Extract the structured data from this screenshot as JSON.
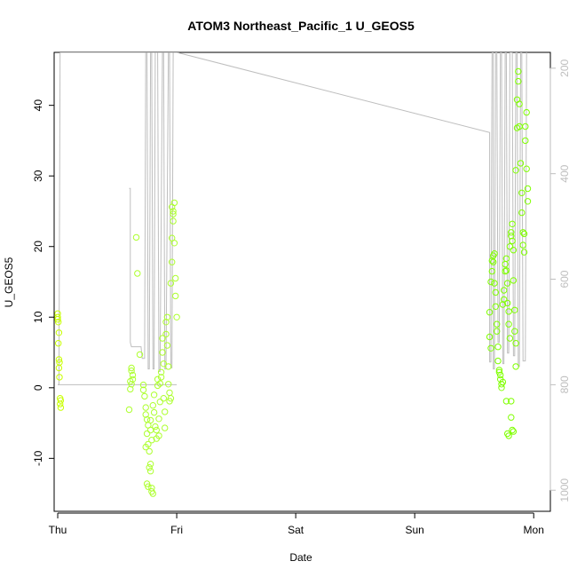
{
  "chart_data": {
    "type": "scatter",
    "title": "ATOM3 Northeast_Pacific_1 U_GEOS5",
    "xlabel": "Date",
    "ylabel": "U_GEOS5",
    "x_tick_labels": [
      "Thu",
      "Fri",
      "Sat",
      "Sun",
      "Mon"
    ],
    "xlim_days": [
      -0.03,
      4.14
    ],
    "ylim": [
      -17.5,
      47.5
    ],
    "y_ticks": [
      -10,
      0,
      10,
      20,
      30,
      40
    ],
    "right_axis": {
      "label": "",
      "lim": [
        1040,
        170
      ],
      "ticks": [
        200,
        400,
        600,
        800,
        1000
      ],
      "color": "#bebebe"
    },
    "grid": false,
    "legend": "none",
    "marker_colors": [
      "#7fff00",
      "#adff2f",
      "#c8ff00"
    ],
    "line_color": "#bebebe",
    "series": [
      {
        "points": [
          [
            0.0,
            10.5
          ],
          [
            0.0,
            10.0
          ],
          [
            0.0,
            9.7
          ],
          [
            0.005,
            9.3
          ],
          [
            0.01,
            7.8
          ],
          [
            0.005,
            6.3
          ],
          [
            0.01,
            4.0
          ],
          [
            0.015,
            3.6
          ],
          [
            0.01,
            2.8
          ],
          [
            0.015,
            1.5
          ],
          [
            0.02,
            -1.5
          ],
          [
            0.025,
            -1.8
          ],
          [
            0.02,
            -2.3
          ],
          [
            0.025,
            -2.8
          ],
          [
            0.62,
            2.8
          ],
          [
            0.62,
            2.4
          ],
          [
            0.63,
            1.8
          ],
          [
            0.63,
            1.2
          ],
          [
            0.61,
            0.9
          ],
          [
            0.62,
            0.5
          ],
          [
            0.61,
            -0.2
          ],
          [
            0.6,
            -3.1
          ],
          [
            0.66,
            21.3
          ],
          [
            0.67,
            16.2
          ],
          [
            0.69,
            4.7
          ],
          [
            0.72,
            0.4
          ],
          [
            0.72,
            -0.3
          ],
          [
            0.73,
            -1.2
          ],
          [
            0.74,
            -2.8
          ],
          [
            0.74,
            -3.8
          ],
          [
            0.75,
            -4.5
          ],
          [
            0.75,
            -6.5
          ],
          [
            0.76,
            -5.3
          ],
          [
            0.76,
            -8.0
          ],
          [
            0.77,
            -9.0
          ],
          [
            0.78,
            -4.6
          ],
          [
            0.78,
            -6.0
          ],
          [
            0.79,
            -7.4
          ],
          [
            0.74,
            -8.4
          ],
          [
            0.75,
            -13.6
          ],
          [
            0.76,
            -14.0
          ],
          [
            0.77,
            -11.3
          ],
          [
            0.78,
            -11.8
          ],
          [
            0.78,
            -10.8
          ],
          [
            0.79,
            -14.2
          ],
          [
            0.79,
            -14.7
          ],
          [
            0.8,
            -15.0
          ],
          [
            0.8,
            -2.5
          ],
          [
            0.81,
            -1.0
          ],
          [
            0.81,
            -3.5
          ],
          [
            0.82,
            -5.5
          ],
          [
            0.83,
            -6.0
          ],
          [
            0.83,
            -7.2
          ],
          [
            0.84,
            0.3
          ],
          [
            0.84,
            1.2
          ],
          [
            0.85,
            -4.4
          ],
          [
            0.85,
            -6.8
          ],
          [
            0.86,
            -2.0
          ],
          [
            0.86,
            0.6
          ],
          [
            0.87,
            1.5
          ],
          [
            0.87,
            2.2
          ],
          [
            0.88,
            5.0
          ],
          [
            0.88,
            7.0
          ],
          [
            0.89,
            3.4
          ],
          [
            0.89,
            -1.5
          ],
          [
            0.9,
            -3.4
          ],
          [
            0.9,
            -5.7
          ],
          [
            0.91,
            7.6
          ],
          [
            0.91,
            9.3
          ],
          [
            0.92,
            10.0
          ],
          [
            0.92,
            6.0
          ],
          [
            0.93,
            3.0
          ],
          [
            0.93,
            0.5
          ],
          [
            0.94,
            -0.7
          ],
          [
            0.94,
            -1.9
          ],
          [
            0.95,
            -1.5
          ],
          [
            0.95,
            14.8
          ],
          [
            0.96,
            17.8
          ],
          [
            0.96,
            21.2
          ],
          [
            0.97,
            23.6
          ],
          [
            0.97,
            25.0
          ],
          [
            0.98,
            26.2
          ],
          [
            0.98,
            20.5
          ],
          [
            0.99,
            15.5
          ],
          [
            0.99,
            13.0
          ],
          [
            1.0,
            10.0
          ],
          [
            0.96,
            25.6
          ],
          [
            0.97,
            24.6
          ],
          [
            3.63,
            10.7
          ],
          [
            3.63,
            7.2
          ],
          [
            3.64,
            5.6
          ],
          [
            3.64,
            15.0
          ],
          [
            3.65,
            16.5
          ],
          [
            3.65,
            18.0
          ],
          [
            3.66,
            18.7
          ],
          [
            3.66,
            17.8
          ],
          [
            3.67,
            19.0
          ],
          [
            3.67,
            14.8
          ],
          [
            3.68,
            11.5
          ],
          [
            3.68,
            13.5
          ],
          [
            3.69,
            9.0
          ],
          [
            3.69,
            8.0
          ],
          [
            3.7,
            5.8
          ],
          [
            3.7,
            3.8
          ],
          [
            3.71,
            2.5
          ],
          [
            3.71,
            2.2
          ],
          [
            3.72,
            1.8
          ],
          [
            3.72,
            1.2
          ],
          [
            3.73,
            0.5
          ],
          [
            3.73,
            0.0
          ],
          [
            3.74,
            0.8
          ],
          [
            3.74,
            11.8
          ],
          [
            3.75,
            12.5
          ],
          [
            3.75,
            13.8
          ],
          [
            3.76,
            16.5
          ],
          [
            3.76,
            17.5
          ],
          [
            3.77,
            18.3
          ],
          [
            3.77,
            16.6
          ],
          [
            3.78,
            14.8
          ],
          [
            3.78,
            12.0
          ],
          [
            3.79,
            10.8
          ],
          [
            3.79,
            9.0
          ],
          [
            3.8,
            7.0
          ],
          [
            3.8,
            20.0
          ],
          [
            3.81,
            21.5
          ],
          [
            3.81,
            22.0
          ],
          [
            3.82,
            20.8
          ],
          [
            3.82,
            23.2
          ],
          [
            3.83,
            19.5
          ],
          [
            3.83,
            15.2
          ],
          [
            3.84,
            11.0
          ],
          [
            3.84,
            8.0
          ],
          [
            3.85,
            6.3
          ],
          [
            3.85,
            3.0
          ],
          [
            3.77,
            -1.9
          ],
          [
            3.78,
            -6.5
          ],
          [
            3.79,
            -6.8
          ],
          [
            3.81,
            -4.2
          ],
          [
            3.82,
            -6.0
          ],
          [
            3.83,
            -6.2
          ],
          [
            3.81,
            -1.9
          ],
          [
            3.85,
            30.8
          ],
          [
            3.86,
            36.8
          ],
          [
            3.86,
            40.8
          ],
          [
            3.87,
            44.8
          ],
          [
            3.87,
            43.4
          ],
          [
            3.88,
            37.0
          ],
          [
            3.89,
            31.8
          ],
          [
            3.9,
            27.6
          ],
          [
            3.9,
            24.8
          ],
          [
            3.91,
            22.0
          ],
          [
            3.91,
            20.2
          ],
          [
            3.92,
            19.2
          ],
          [
            3.92,
            21.8
          ],
          [
            3.93,
            35.0
          ],
          [
            3.93,
            37.0
          ],
          [
            3.94,
            39.0
          ],
          [
            3.94,
            31.0
          ],
          [
            3.95,
            28.2
          ],
          [
            3.95,
            26.4
          ],
          [
            3.88,
            40.2
          ]
        ]
      }
    ],
    "right_axis_line": [
      [
        0.0,
        800
      ],
      [
        0.01,
        800
      ],
      [
        0.02,
        170
      ],
      [
        0.55,
        170
      ],
      [
        1.0,
        170
      ],
      [
        3.63,
        322
      ],
      [
        3.63,
        757
      ],
      [
        3.64,
        757
      ],
      [
        3.65,
        170
      ],
      [
        3.66,
        170
      ],
      [
        3.66,
        770
      ],
      [
        3.67,
        770
      ],
      [
        3.68,
        170
      ],
      [
        3.69,
        170
      ],
      [
        3.7,
        720
      ],
      [
        3.71,
        720
      ],
      [
        3.72,
        170
      ],
      [
        3.73,
        170
      ],
      [
        3.74,
        760
      ],
      [
        3.75,
        760
      ],
      [
        3.76,
        170
      ],
      [
        3.77,
        170
      ],
      [
        3.78,
        740
      ],
      [
        3.79,
        740
      ],
      [
        3.8,
        170
      ],
      [
        3.82,
        170
      ],
      [
        3.83,
        745
      ],
      [
        3.84,
        745
      ],
      [
        3.85,
        170
      ],
      [
        3.86,
        170
      ],
      [
        3.87,
        765
      ],
      [
        3.88,
        765
      ],
      [
        3.89,
        170
      ],
      [
        3.9,
        170
      ],
      [
        3.91,
        755
      ],
      [
        3.93,
        755
      ],
      [
        3.94,
        170
      ]
    ],
    "right_axis_line_b": [
      [
        0.6,
        428
      ],
      [
        0.61,
        428
      ],
      [
        0.61,
        720
      ],
      [
        0.62,
        728
      ],
      [
        0.7,
        728
      ],
      [
        0.71,
        750
      ],
      [
        0.73,
        750
      ],
      [
        0.74,
        170
      ],
      [
        0.75,
        170
      ],
      [
        0.76,
        770
      ],
      [
        0.77,
        770
      ],
      [
        0.78,
        170
      ],
      [
        0.79,
        170
      ],
      [
        0.8,
        770
      ],
      [
        0.81,
        770
      ],
      [
        0.82,
        170
      ],
      [
        0.84,
        170
      ],
      [
        0.85,
        775
      ],
      [
        0.86,
        775
      ],
      [
        0.88,
        170
      ],
      [
        0.89,
        170
      ],
      [
        0.9,
        770
      ],
      [
        0.91,
        770
      ],
      [
        0.93,
        170
      ],
      [
        0.94,
        170
      ],
      [
        0.95,
        768
      ],
      [
        0.96,
        768
      ],
      [
        0.97,
        170
      ]
    ],
    "right_axis_line_c": [
      [
        0.0,
        800
      ],
      [
        0.6,
        800
      ],
      [
        0.61,
        800
      ],
      [
        0.62,
        800
      ],
      [
        0.7,
        800
      ],
      [
        0.74,
        800
      ],
      [
        1.0,
        800
      ]
    ]
  }
}
